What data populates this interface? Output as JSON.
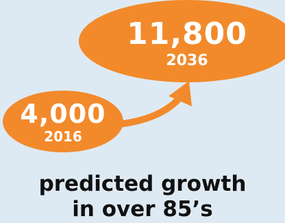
{
  "colors": {
    "background": "#deeaf3",
    "accent": "#f28a2b",
    "text_on_accent": "#ffffff",
    "caption_text": "#111111"
  },
  "bubble_2036": {
    "value": "11,800",
    "year": "2036"
  },
  "bubble_2016": {
    "value": "4,000",
    "year": "2016"
  },
  "caption": {
    "line1": "predicted growth",
    "line2": "in over 85’s"
  }
}
